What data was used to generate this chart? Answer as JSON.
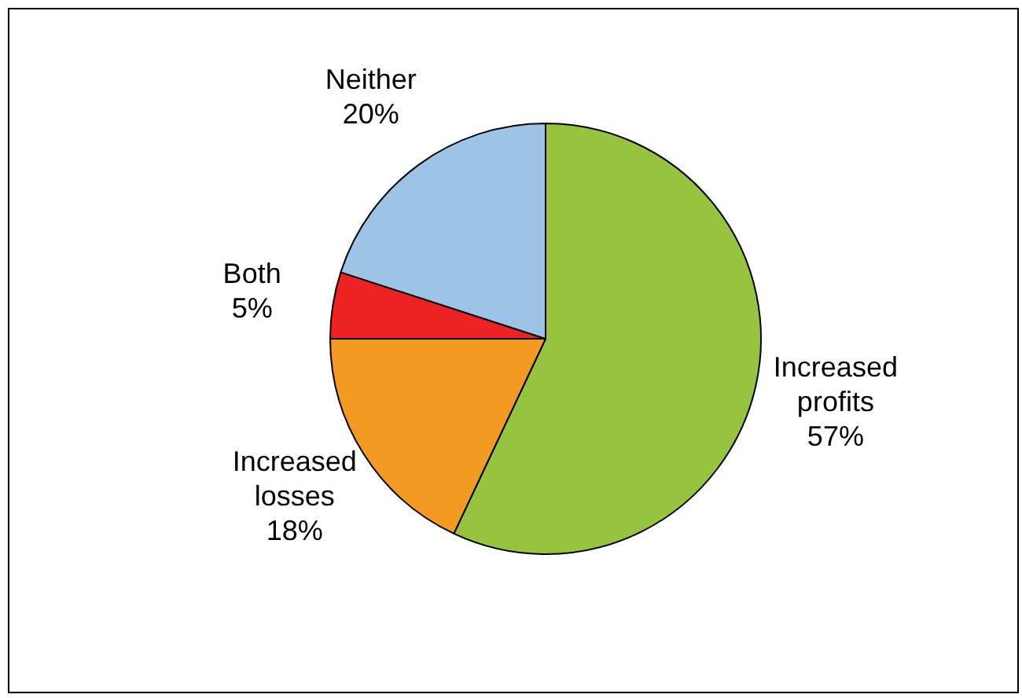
{
  "chart_data": {
    "type": "pie",
    "categories": [
      "Increased profits",
      "Increased losses",
      "Both",
      "Neither"
    ],
    "values": [
      57,
      18,
      5,
      20
    ],
    "colors": [
      "#97c43e",
      "#f39a23",
      "#ee2125",
      "#9dc3e6"
    ],
    "value_labels": [
      "57%",
      "18%",
      "5%",
      "20%"
    ],
    "legend": false
  }
}
